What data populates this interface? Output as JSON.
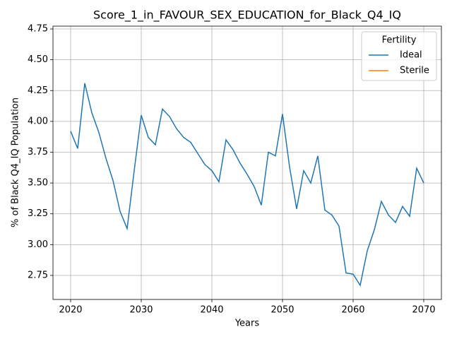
{
  "chart_data": {
    "type": "line",
    "title": "Score_1_in_FAVOUR_SEX_EDUCATION_for_Black_Q4_IQ",
    "xlabel": "Years",
    "ylabel": "% of Black Q4_IQ Population",
    "x": [
      2020,
      2021,
      2022,
      2023,
      2024,
      2025,
      2026,
      2027,
      2028,
      2029,
      2030,
      2031,
      2032,
      2033,
      2034,
      2035,
      2036,
      2037,
      2038,
      2039,
      2040,
      2041,
      2042,
      2043,
      2044,
      2045,
      2046,
      2047,
      2048,
      2049,
      2050,
      2051,
      2052,
      2053,
      2054,
      2055,
      2056,
      2057,
      2058,
      2059,
      2060,
      2061,
      2062,
      2063,
      2064,
      2065,
      2066,
      2067,
      2068,
      2069,
      2070
    ],
    "series": [
      {
        "name": "Ideal",
        "color": "#1f77b4",
        "values": [
          3.92,
          3.78,
          4.31,
          4.07,
          3.91,
          3.7,
          3.52,
          3.27,
          3.13,
          3.6,
          4.05,
          3.87,
          3.81,
          4.1,
          4.04,
          3.94,
          3.87,
          3.83,
          3.74,
          3.65,
          3.6,
          3.51,
          3.85,
          3.77,
          3.66,
          3.57,
          3.47,
          3.32,
          3.75,
          3.72,
          4.06,
          3.63,
          3.29,
          3.6,
          3.5,
          3.72,
          3.28,
          3.24,
          3.15,
          2.77,
          2.76,
          2.67,
          2.95,
          3.12,
          3.35,
          3.24,
          3.18,
          3.31,
          3.23,
          3.62,
          3.5
        ]
      },
      {
        "name": "Sterile",
        "color": "#ff7f0e",
        "values": [
          null,
          null,
          null,
          null,
          null,
          null,
          null,
          null,
          null,
          null,
          null,
          null,
          null,
          null,
          null,
          null,
          null,
          null,
          null,
          null,
          null,
          null,
          null,
          null,
          null,
          null,
          null,
          null,
          null,
          null,
          null,
          null,
          null,
          null,
          null,
          null,
          null,
          null,
          null,
          null,
          null,
          null,
          null,
          null,
          null,
          null,
          null,
          null,
          null,
          null,
          null
        ]
      }
    ],
    "legend_title": "Fertility",
    "legend": "upper right",
    "xlim": [
      2017.5,
      2072.5
    ],
    "xticks": [
      2020,
      2030,
      2040,
      2050,
      2060,
      2070
    ],
    "ylim": [
      2.555,
      4.773
    ],
    "yticks": [
      2.75,
      {
        "value": 3.0,
        "label": "3.00"
      },
      3.25,
      {
        "value": 3.5,
        "label": "3.50"
      },
      3.75,
      {
        "value": 4.0,
        "label": "4.00"
      },
      4.25,
      {
        "value": 4.5,
        "label": "4.50"
      },
      4.75
    ],
    "grid": true
  }
}
